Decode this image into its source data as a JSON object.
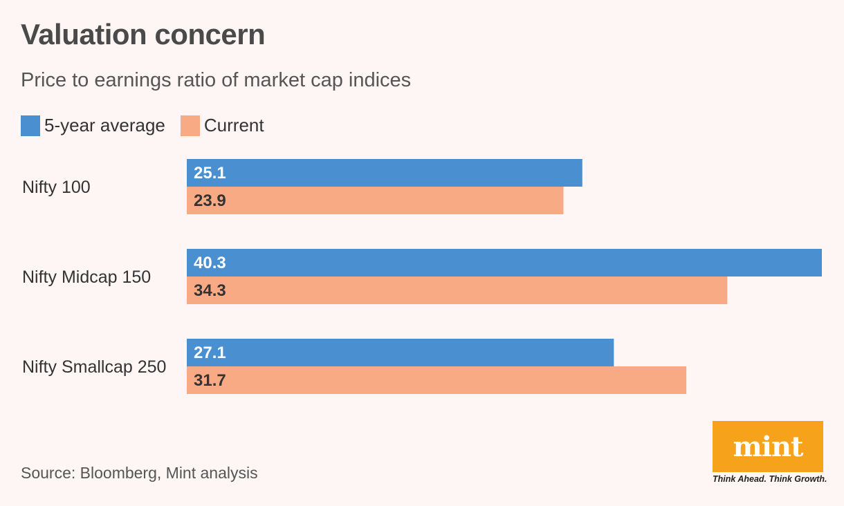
{
  "title": "Valuation concern",
  "subtitle": "Price to earnings ratio of market cap indices",
  "source": "Source: Bloomberg, Mint analysis",
  "logo": {
    "wordmark": "mint",
    "tagline": "Think Ahead. Think Growth.",
    "color": "#f7a21b"
  },
  "chart_data": {
    "type": "bar",
    "orientation": "horizontal",
    "categories": [
      "Nifty 100",
      "Nifty Midcap 150",
      "Nifty Smallcap 250"
    ],
    "series": [
      {
        "name": "5-year average",
        "color": "#4a8fcf",
        "values": [
          25.1,
          40.3,
          27.1
        ]
      },
      {
        "name": "Current",
        "color": "#f8aa84",
        "values": [
          23.9,
          34.3,
          31.7
        ]
      }
    ],
    "xlim": [
      0,
      40.3
    ],
    "grid": false,
    "legend_position": "top-left",
    "data_labels": true
  }
}
